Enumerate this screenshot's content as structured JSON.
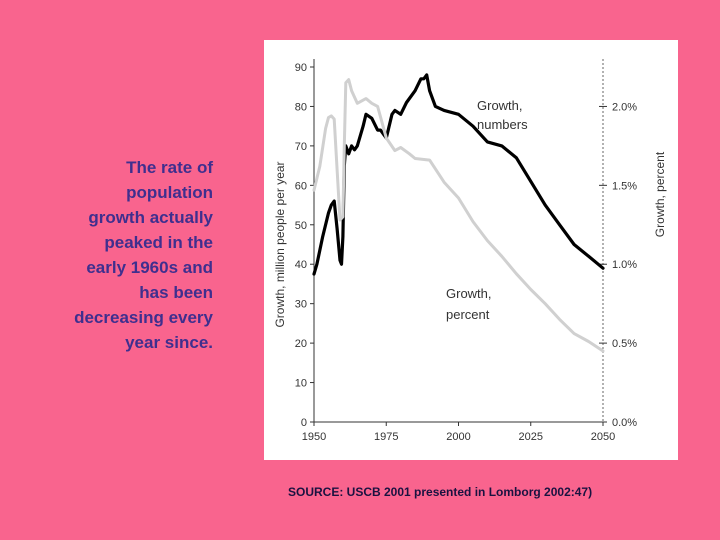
{
  "caption": {
    "lines": [
      "The rate of",
      "population",
      "growth actually",
      "peaked in the",
      "early 1960s and",
      "has been",
      "decreasing every",
      "year since."
    ]
  },
  "source": "SOURCE: USCB 2001 presented  in Lomborg 2002:47)",
  "chart_data": {
    "type": "line",
    "xlim": [
      1950,
      2050
    ],
    "x_ticks": [
      "1950",
      "1975",
      "2000",
      "2025",
      "2050"
    ],
    "ylabel": "Growth, million people per year",
    "ylim": [
      0,
      90
    ],
    "y_ticks": [
      "0",
      "10",
      "20",
      "30",
      "40",
      "50",
      "60",
      "70",
      "80",
      "90"
    ],
    "y2label": "Growth, percent",
    "y2lim": [
      0.0,
      2.25
    ],
    "y2_ticks": [
      "0.0%",
      "0.5%",
      "1.0%",
      "1.5%",
      "2.0%"
    ],
    "y2_tick_values": [
      0.0,
      0.5,
      1.0,
      1.5,
      2.0
    ],
    "grid": false,
    "series": [
      {
        "name": "Growth, numbers",
        "axis": "left",
        "color": "#000000",
        "x": [
          1950,
          1951,
          1953,
          1955,
          1956,
          1957,
          1958,
          1959,
          1959.5,
          1960,
          1960.5,
          1961,
          1962,
          1963,
          1964,
          1965,
          1967,
          1968,
          1970,
          1972,
          1973,
          1975,
          1977,
          1978,
          1980,
          1982,
          1985,
          1987,
          1988,
          1989,
          1990,
          1992,
          1995,
          2000,
          2005,
          2010,
          2015,
          2020,
          2025,
          2030,
          2035,
          2040,
          2045,
          2050
        ],
        "values": [
          37.5,
          40,
          47,
          53,
          55,
          56,
          49,
          41,
          40,
          47,
          65,
          70,
          68,
          70,
          69,
          70,
          75,
          78,
          77,
          74,
          74,
          72,
          78,
          79,
          78,
          81,
          84,
          87,
          87,
          88,
          84,
          80,
          79,
          78,
          75,
          71,
          70,
          67,
          61,
          55,
          50,
          45,
          42,
          39
        ]
      },
      {
        "name": "Growth, percent",
        "axis": "right",
        "color": "#d0d0d0",
        "x": [
          1950,
          1952,
          1954,
          1955,
          1956,
          1957,
          1958,
          1959,
          1960,
          1960.5,
          1961,
          1962,
          1963,
          1965,
          1968,
          1970,
          1972,
          1975,
          1978,
          1980,
          1983,
          1985,
          1990,
          1995,
          2000,
          2005,
          2010,
          2015,
          2020,
          2025,
          2030,
          2035,
          2040,
          2045,
          2050
        ],
        "values": [
          1.47,
          1.62,
          1.86,
          1.93,
          1.94,
          1.92,
          1.6,
          1.28,
          1.3,
          1.75,
          2.15,
          2.17,
          2.1,
          2.02,
          2.05,
          2.02,
          2.0,
          1.8,
          1.72,
          1.74,
          1.7,
          1.67,
          1.66,
          1.52,
          1.42,
          1.27,
          1.15,
          1.05,
          0.94,
          0.84,
          0.75,
          0.65,
          0.56,
          0.51,
          0.45
        ]
      }
    ]
  }
}
